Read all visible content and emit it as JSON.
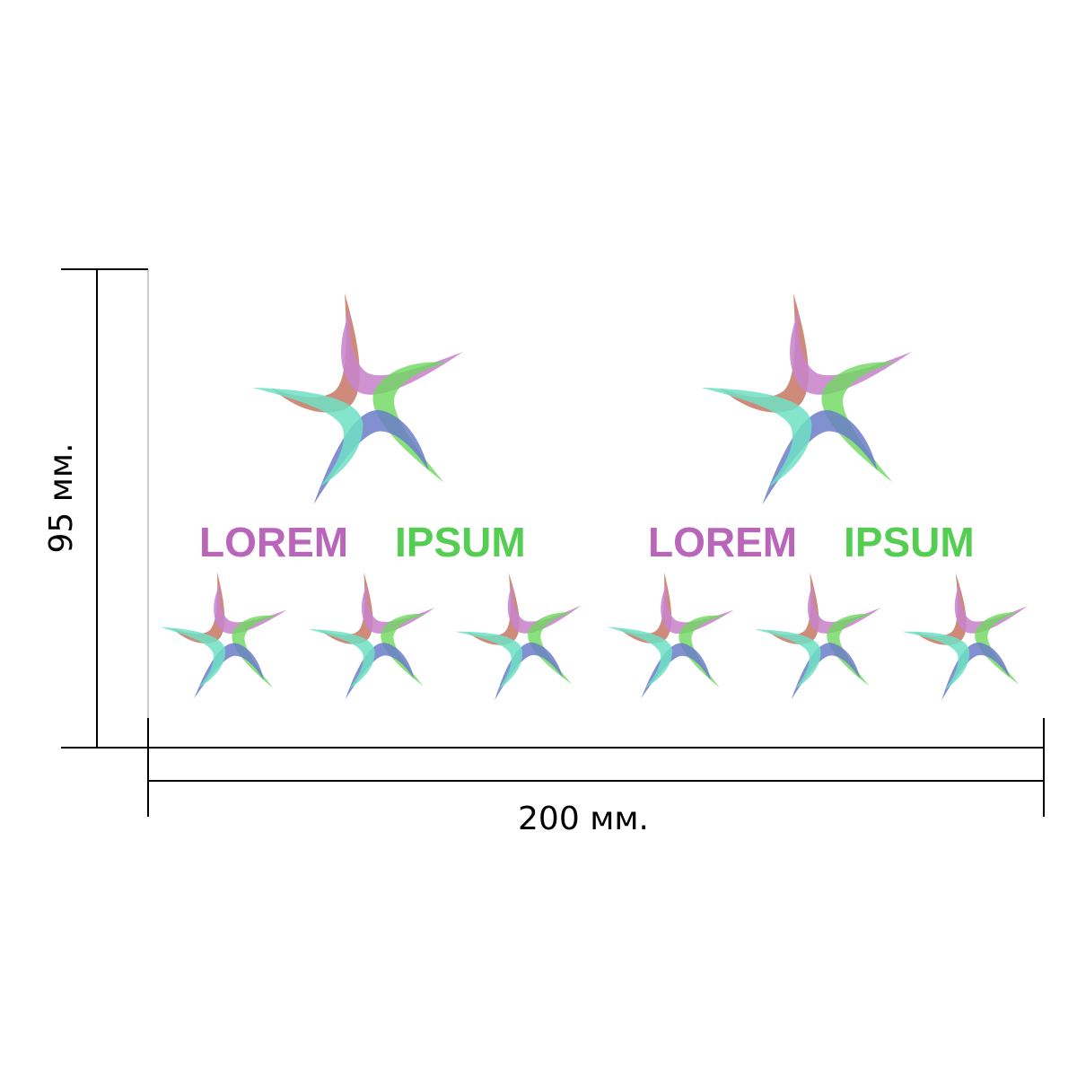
{
  "dimensions": {
    "height": "95 мм.",
    "width": "200 мм."
  },
  "logos": [
    {
      "word1": "LOREM",
      "word2": "IPSUM"
    },
    {
      "word1": "LOREM",
      "word2": "IPSUM"
    }
  ]
}
